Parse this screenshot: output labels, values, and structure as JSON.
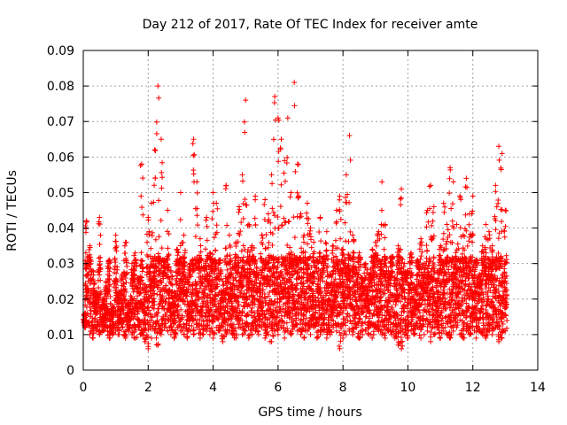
{
  "chart_data": {
    "type": "scatter",
    "title": "Day 212 of 2017, Rate Of TEC Index for receiver amte",
    "xlabel": "GPS time / hours",
    "ylabel": "ROTI / TECUs",
    "xlim": [
      0,
      14
    ],
    "ylim": [
      0,
      0.09
    ],
    "x_ticks": [
      "0",
      "2",
      "4",
      "6",
      "8",
      "10",
      "12",
      "14"
    ],
    "y_ticks": [
      "0",
      "0.01",
      "0.02",
      "0.03",
      "0.04",
      "0.05",
      "0.06",
      "0.07",
      "0.08",
      "0.09"
    ],
    "grid": true,
    "marker": "plus",
    "color": "#ff0000",
    "series": [
      {
        "x": [
          0.05,
          0.1,
          0.2,
          0.3,
          0.4,
          0.5,
          0.6,
          0.7,
          0.8,
          0.9,
          1.0,
          1.1,
          1.2,
          1.3,
          1.4,
          1.5,
          1.6,
          1.7,
          1.8,
          1.9,
          2.0,
          2.1,
          2.2,
          2.3,
          2.4,
          2.5,
          2.6,
          2.7,
          2.8,
          2.9,
          3.0,
          3.1,
          3.2,
          3.3,
          3.4,
          3.5,
          3.6,
          3.7,
          3.8,
          3.9,
          4.0,
          4.1,
          4.2,
          4.3,
          4.4,
          4.5,
          4.6,
          4.7,
          4.8,
          4.9,
          5.0,
          5.1,
          5.2,
          5.3,
          5.4,
          5.5,
          5.6,
          5.7,
          5.8,
          5.9,
          6.0,
          6.1,
          6.2,
          6.3,
          6.4,
          6.5,
          6.6,
          6.7,
          6.8,
          6.9,
          7.0,
          7.1,
          7.2,
          7.3,
          7.4,
          7.5,
          7.6,
          7.7,
          7.8,
          7.9,
          8.0,
          8.1,
          8.2,
          8.3,
          8.4,
          8.5,
          8.6,
          8.7,
          8.8,
          8.9,
          9.0,
          9.1,
          9.2,
          9.3,
          9.4,
          9.5,
          9.6,
          9.7,
          9.8,
          9.9,
          10.0,
          10.1,
          10.2,
          10.3,
          10.4,
          10.5,
          10.6,
          10.7,
          10.8,
          10.9,
          11.0,
          11.1,
          11.2,
          11.3,
          11.4,
          11.5,
          11.6,
          11.7,
          11.8,
          11.9,
          12.0,
          12.1,
          12.2,
          12.3,
          12.4,
          12.5,
          12.6,
          12.7,
          12.8,
          12.9,
          13.0
        ],
        "y": [
          0.016,
          0.042,
          0.035,
          0.028,
          0.022,
          0.043,
          0.02,
          0.025,
          0.031,
          0.018,
          0.038,
          0.022,
          0.027,
          0.036,
          0.019,
          0.03,
          0.033,
          0.026,
          0.058,
          0.024,
          0.043,
          0.047,
          0.062,
          0.08,
          0.065,
          0.031,
          0.045,
          0.028,
          0.022,
          0.034,
          0.05,
          0.038,
          0.026,
          0.03,
          0.065,
          0.053,
          0.037,
          0.029,
          0.043,
          0.033,
          0.05,
          0.047,
          0.031,
          0.025,
          0.052,
          0.038,
          0.029,
          0.036,
          0.046,
          0.055,
          0.076,
          0.041,
          0.035,
          0.049,
          0.027,
          0.038,
          0.048,
          0.044,
          0.055,
          0.077,
          0.071,
          0.065,
          0.059,
          0.071,
          0.05,
          0.081,
          0.058,
          0.044,
          0.038,
          0.047,
          0.04,
          0.036,
          0.031,
          0.043,
          0.032,
          0.039,
          0.027,
          0.035,
          0.045,
          0.049,
          0.034,
          0.055,
          0.066,
          0.038,
          0.029,
          0.033,
          0.026,
          0.03,
          0.027,
          0.034,
          0.036,
          0.039,
          0.053,
          0.041,
          0.028,
          0.032,
          0.026,
          0.035,
          0.051,
          0.03,
          0.028,
          0.033,
          0.024,
          0.031,
          0.037,
          0.03,
          0.045,
          0.052,
          0.046,
          0.028,
          0.035,
          0.047,
          0.041,
          0.057,
          0.053,
          0.041,
          0.049,
          0.038,
          0.054,
          0.044,
          0.049,
          0.031,
          0.027,
          0.035,
          0.041,
          0.039,
          0.035,
          0.052,
          0.063,
          0.061,
          0.045
        ],
        "y_low": [
          0.012,
          0.013,
          0.01,
          0.009,
          0.011,
          0.01,
          0.011,
          0.012,
          0.009,
          0.01,
          0.011,
          0.01,
          0.012,
          0.009,
          0.011,
          0.01,
          0.009,
          0.012,
          0.01,
          0.008,
          0.006,
          0.009,
          0.011,
          0.007,
          0.01,
          0.012,
          0.011,
          0.01,
          0.009,
          0.012,
          0.011,
          0.01,
          0.009,
          0.011,
          0.01,
          0.012,
          0.009,
          0.01,
          0.011,
          0.01,
          0.009,
          0.012,
          0.011,
          0.008,
          0.01,
          0.011,
          0.01,
          0.009,
          0.012,
          0.01,
          0.011,
          0.009,
          0.01,
          0.011,
          0.01,
          0.012,
          0.009,
          0.01,
          0.008,
          0.011,
          0.01,
          0.012,
          0.009,
          0.011,
          0.01,
          0.012,
          0.011,
          0.01,
          0.009,
          0.011,
          0.01,
          0.012,
          0.009,
          0.01,
          0.011,
          0.009,
          0.01,
          0.012,
          0.011,
          0.006,
          0.009,
          0.01,
          0.011,
          0.01,
          0.012,
          0.009,
          0.01,
          0.011,
          0.01,
          0.009,
          0.012,
          0.011,
          0.01,
          0.009,
          0.011,
          0.01,
          0.009,
          0.007,
          0.006,
          0.01,
          0.009,
          0.011,
          0.01,
          0.012,
          0.009,
          0.01,
          0.011,
          0.008,
          0.01,
          0.012,
          0.009,
          0.011,
          0.01,
          0.009,
          0.011,
          0.012,
          0.01,
          0.009,
          0.011,
          0.01,
          0.012,
          0.009,
          0.011,
          0.01,
          0.009,
          0.011,
          0.01,
          0.012,
          0.008,
          0.009,
          0.011
        ]
      }
    ]
  }
}
